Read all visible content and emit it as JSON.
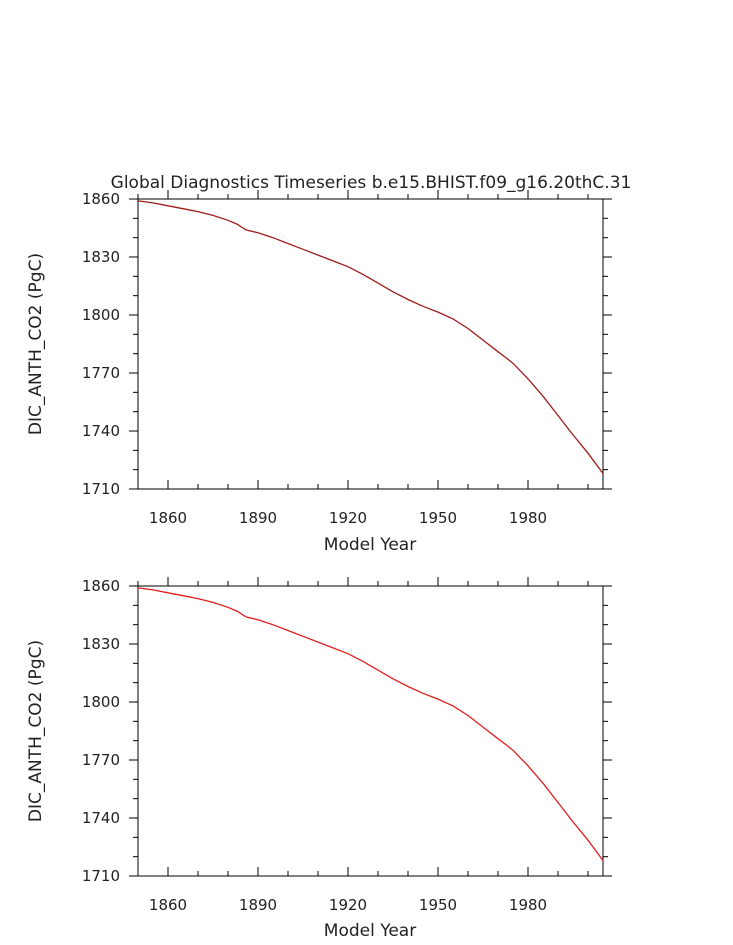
{
  "chart_data": [
    {
      "type": "line",
      "title": "Global Diagnostics Timeseries b.e15.BHIST.f09_g16.20thC.31",
      "xlabel": "Model Year",
      "ylabel": "DIC_ANTH_CO2 (PgC)",
      "xlim": [
        1850,
        2005
      ],
      "ylim": [
        1710,
        1860
      ],
      "xticks": [
        1860,
        1890,
        1920,
        1950,
        1980
      ],
      "yticks": [
        1710,
        1740,
        1770,
        1800,
        1830,
        1860
      ],
      "line_color": "#9e1b1b",
      "series": [
        {
          "x": [
            1850,
            1855,
            1860,
            1865,
            1870,
            1875,
            1880,
            1883,
            1886,
            1890,
            1895,
            1900,
            1905,
            1910,
            1915,
            1920,
            1925,
            1930,
            1935,
            1940,
            1945,
            1950,
            1955,
            1960,
            1965,
            1970,
            1973,
            1975,
            1980,
            1985,
            1990,
            1995,
            2000,
            2005
          ],
          "y": [
            1859,
            1858,
            1856.5,
            1855,
            1853.5,
            1851.5,
            1849,
            1847,
            1844,
            1842.5,
            1840,
            1837,
            1834,
            1831,
            1828,
            1825,
            1821,
            1816.5,
            1812,
            1808,
            1804.5,
            1801.5,
            1798,
            1793,
            1787,
            1781,
            1777.5,
            1775,
            1767,
            1758,
            1748,
            1738,
            1728.5,
            1718
          ]
        }
      ]
    },
    {
      "type": "line",
      "title": "",
      "xlabel": "Model Year",
      "ylabel": "DIC_ANTH_CO2 (PgC)",
      "xlim": [
        1850,
        2005
      ],
      "ylim": [
        1710,
        1860
      ],
      "xticks": [
        1860,
        1890,
        1920,
        1950,
        1980
      ],
      "yticks": [
        1710,
        1740,
        1770,
        1800,
        1830,
        1860
      ],
      "line_color": "#e01e1e",
      "series": [
        {
          "x": [
            1850,
            1855,
            1860,
            1865,
            1870,
            1875,
            1880,
            1883,
            1886,
            1890,
            1895,
            1900,
            1905,
            1910,
            1915,
            1920,
            1925,
            1930,
            1935,
            1940,
            1945,
            1950,
            1955,
            1960,
            1965,
            1970,
            1973,
            1975,
            1980,
            1985,
            1990,
            1995,
            2000,
            2005
          ],
          "y": [
            1859,
            1858,
            1856.5,
            1855,
            1853.5,
            1851.5,
            1849,
            1847,
            1844,
            1842.5,
            1840,
            1837,
            1834,
            1831,
            1828,
            1825,
            1821,
            1816.5,
            1812,
            1808,
            1804.5,
            1801.5,
            1798,
            1793,
            1787,
            1781,
            1777.5,
            1775,
            1767,
            1758,
            1748,
            1738,
            1728.5,
            1718
          ]
        }
      ]
    }
  ]
}
